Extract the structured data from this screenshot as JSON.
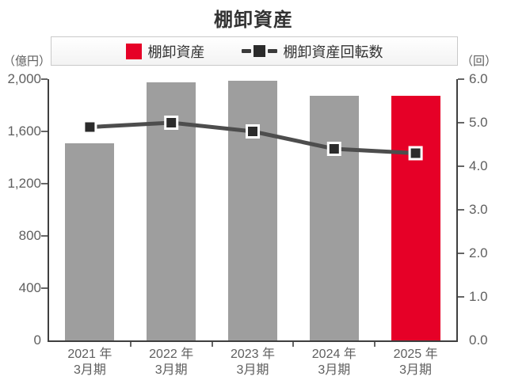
{
  "title": "棚卸資産",
  "chart_data": {
    "type": "combo",
    "title": "棚卸資産",
    "grid": false,
    "legend_position": "top",
    "categories": [
      [
        "2021 年",
        "3月期"
      ],
      [
        "2022 年",
        "3月期"
      ],
      [
        "2023 年",
        "3月期"
      ],
      [
        "2024 年",
        "3月期"
      ],
      [
        "2025 年",
        "3月期"
      ]
    ],
    "series": [
      {
        "name": "棚卸資産",
        "type": "bar",
        "axis": "left",
        "values": [
          1510,
          1975,
          1990,
          1870,
          1870
        ],
        "colors": [
          "#9e9e9e",
          "#9e9e9e",
          "#9e9e9e",
          "#9e9e9e",
          "#e60027"
        ]
      },
      {
        "name": "棚卸資産回転数",
        "type": "line",
        "axis": "right",
        "values": [
          4.9,
          5.0,
          4.8,
          4.4,
          4.3
        ],
        "color": "#4d4d4d",
        "marker_color": "#2b2b2b"
      }
    ],
    "axes": {
      "left": {
        "unit_label": "（億円）",
        "min": 0,
        "max": 2000,
        "ticks": [
          "0",
          "400",
          "800",
          "1,200",
          "1,600",
          "2,000"
        ]
      },
      "right": {
        "unit_label": "（回）",
        "min": 0,
        "max": 6,
        "ticks": [
          "0.0",
          "1.0",
          "2.0",
          "3.0",
          "4.0",
          "5.0",
          "6.0"
        ]
      }
    }
  },
  "colors": {
    "bar_default": "#9e9e9e",
    "bar_highlight": "#e60027",
    "line": "#4d4d4d",
    "marker": "#2b2b2b",
    "legend_line": "#3a3a3a",
    "axis": "#3f3f3f"
  }
}
